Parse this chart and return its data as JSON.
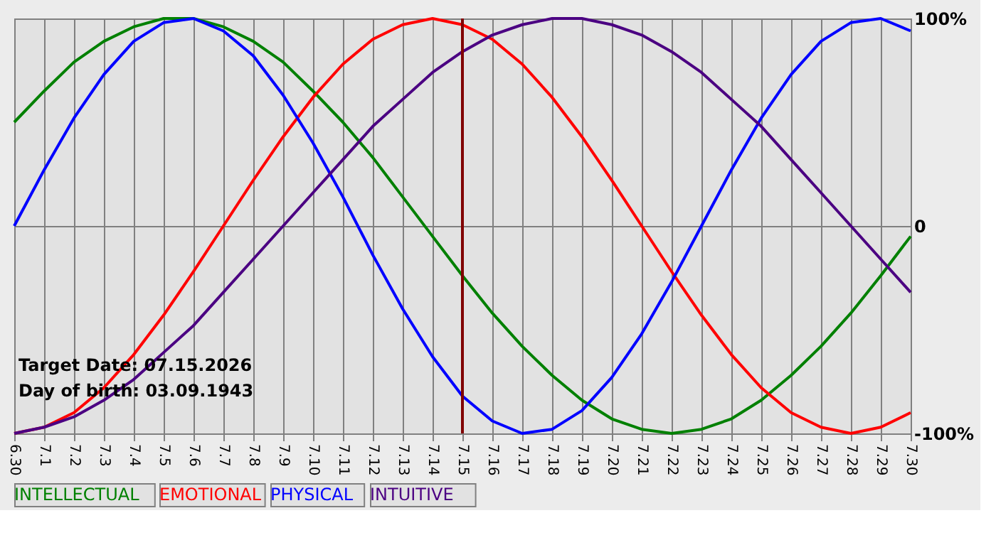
{
  "chart_data": {
    "type": "line",
    "categories": [
      "6.30",
      "7.1",
      "7.2",
      "7.3",
      "7.4",
      "7.5",
      "7.6",
      "7.7",
      "7.8",
      "7.9",
      "7.10",
      "7.11",
      "7.12",
      "7.13",
      "7.14",
      "7.15",
      "7.16",
      "7.17",
      "7.18",
      "7.19",
      "7.20",
      "7.21",
      "7.22",
      "7.23",
      "7.24",
      "7.25",
      "7.26",
      "7.27",
      "7.28",
      "7.29",
      "7.30"
    ],
    "series": [
      {
        "name": "INTELLECTUAL",
        "color": "#008000",
        "values": [
          50,
          65,
          79,
          89,
          96,
          100,
          100,
          96,
          89,
          79,
          65,
          50,
          33,
          14,
          -5,
          -24,
          -42,
          -58,
          -72,
          -84,
          -93,
          -98,
          -100,
          -98,
          -93,
          -84,
          -72,
          -58,
          -42,
          -24,
          -5
        ]
      },
      {
        "name": "EMOTIONAL",
        "color": "#ff0000",
        "values": [
          -100,
          -97,
          -90,
          -78,
          -62,
          -43,
          -22,
          0,
          22,
          43,
          62,
          78,
          90,
          97,
          100,
          97,
          90,
          78,
          62,
          43,
          22,
          0,
          -22,
          -43,
          -62,
          -78,
          -90,
          -97,
          -100,
          -97,
          -90
        ]
      },
      {
        "name": "PHYSICAL",
        "color": "#0000ff",
        "values": [
          0,
          27,
          52,
          73,
          89,
          98,
          100,
          94,
          82,
          63,
          40,
          14,
          -14,
          -40,
          -63,
          -82,
          -94,
          -100,
          -98,
          -89,
          -73,
          -52,
          -27,
          0,
          27,
          52,
          73,
          89,
          98,
          100,
          94
        ]
      },
      {
        "name": "INTUITIVE",
        "color": "#4b0082",
        "values": [
          -100,
          -97,
          -92,
          -84,
          -74,
          -61,
          -48,
          -32,
          -16,
          0,
          16,
          32,
          48,
          61,
          74,
          84,
          92,
          97,
          100,
          100,
          97,
          92,
          84,
          74,
          61,
          48,
          32,
          16,
          0,
          -16,
          -32
        ]
      }
    ],
    "ylim": [
      -100,
      100
    ],
    "yticks": [
      {
        "value": 100,
        "label": "100%"
      },
      0,
      {
        "value": -100,
        "label": "-100%"
      }
    ],
    "ref_lines": [
      {
        "axis": "x",
        "value": "7.15",
        "color": "#800000"
      }
    ],
    "annotations": [
      "Target Date: 07.15.2026",
      "Day of birth: 03.09.1943"
    ],
    "grid": true,
    "legend": "bottom"
  }
}
